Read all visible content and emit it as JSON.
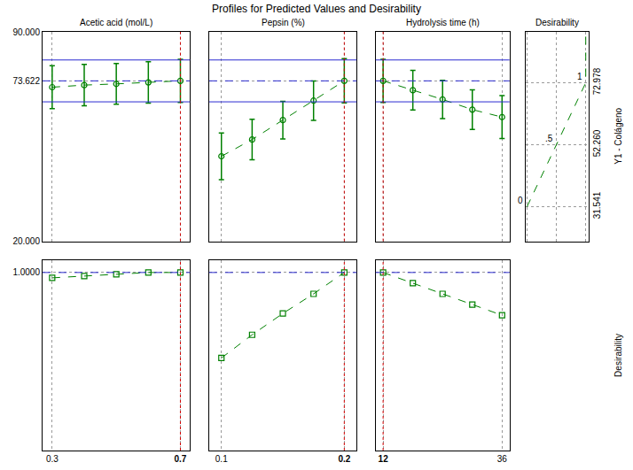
{
  "title": "Profiles for Predicted Values and Desirability",
  "chart_data": [
    {
      "type": "line",
      "title": "Acetic acid (mol/L)",
      "x": [
        0.3,
        0.4,
        0.5,
        0.6,
        0.7
      ],
      "values": [
        71.5,
        72.2,
        72.6,
        73.1,
        73.622
      ],
      "errors": [
        7.2,
        6.9,
        6.8,
        6.9,
        7.2
      ],
      "xlim": [
        0.27,
        0.73
      ],
      "xticks": [
        0.3,
        0.7
      ],
      "ylim": [
        20,
        90
      ],
      "yticks": [
        {
          "value": 20,
          "label": "20.000"
        },
        73.622,
        {
          "value": 90,
          "label": "90.000"
        }
      ],
      "reference_lines": [
        {
          "value": 73.622,
          "line_style": "dash",
          "color": "#2a2ad0"
        },
        {
          "value": 66.6,
          "line_style": "solid",
          "color": "#2a2ad0"
        },
        {
          "value": 80.6,
          "line_style": "solid",
          "color": "#2a2ad0"
        }
      ],
      "current_x": 0.7,
      "grid": true,
      "tick_labels": "y",
      "color": "#008000",
      "marker": "circle",
      "line_style": "dash"
    },
    {
      "type": "line",
      "title": "Pepsin (%)",
      "x": [
        0.1,
        0.125,
        0.15,
        0.175,
        0.2
      ],
      "values": [
        48.4,
        54.0,
        60.5,
        67.0,
        73.622
      ],
      "errors": [
        7.8,
        6.8,
        6.3,
        6.6,
        7.4
      ],
      "xlim": [
        0.09,
        0.21
      ],
      "xticks": [
        0.1,
        0.2
      ],
      "ylim": [
        20,
        90
      ],
      "yticks": [
        {
          "value": 20,
          "label": "20.000"
        },
        73.622,
        {
          "value": 90,
          "label": "90.000"
        }
      ],
      "reference_lines": [
        {
          "value": 73.622,
          "line_style": "dash",
          "color": "#2a2ad0"
        },
        {
          "value": 66.6,
          "line_style": "solid",
          "color": "#2a2ad0"
        },
        {
          "value": 80.6,
          "line_style": "solid",
          "color": "#2a2ad0"
        }
      ],
      "current_x": 0.2,
      "grid": true,
      "tick_labels": false,
      "color": "#008000",
      "marker": "circle",
      "line_style": "dash"
    },
    {
      "type": "line",
      "title": "Hydrolysis time (h)",
      "x": [
        12,
        18,
        24,
        30,
        36
      ],
      "values": [
        73.622,
        70.5,
        67.4,
        64.0,
        61.5
      ],
      "errors": [
        7.2,
        6.6,
        6.4,
        6.6,
        7.2
      ],
      "xlim": [
        10.5,
        37.5
      ],
      "xticks": [
        12,
        36
      ],
      "ylim": [
        20,
        90
      ],
      "yticks": [
        {
          "value": 20,
          "label": "20.000"
        },
        73.622,
        {
          "value": 90,
          "label": "90.000"
        }
      ],
      "reference_lines": [
        {
          "value": 73.622,
          "line_style": "dash",
          "color": "#2a2ad0"
        },
        {
          "value": 66.6,
          "line_style": "solid",
          "color": "#2a2ad0"
        },
        {
          "value": 80.6,
          "line_style": "solid",
          "color": "#2a2ad0"
        }
      ],
      "current_x": 12,
      "grid": true,
      "tick_labels": false,
      "color": "#008000",
      "marker": "circle",
      "line_style": "dash"
    },
    {
      "type": "line",
      "title": "Desirability",
      "ylabel": "Y1 - Colágeno",
      "x": [
        0,
        0.5,
        1,
        1
      ],
      "values": [
        31.541,
        52.26,
        72.978,
        90
      ],
      "xlim": [
        -0.02,
        1.05
      ],
      "xticks": [
        0,
        0.5,
        1
      ],
      "ylim": [
        20,
        90
      ],
      "yticks": [
        31.541,
        {
          "value": 52.26,
          "label": "52.260"
        },
        72.978
      ],
      "annotations": [
        {
          "x": 0,
          "y": 31.541,
          "text": "0"
        },
        {
          "x": 0.5,
          "y": 52.26,
          "text": ".5"
        },
        {
          "x": 1,
          "y": 72.978,
          "text": "1"
        }
      ],
      "grid": true,
      "tick_labels": "y",
      "color": "#008000",
      "marker": "none",
      "line_style": "dash"
    },
    {
      "type": "line",
      "ylabel": "Desirability",
      "x": [
        0.3,
        0.4,
        0.5,
        0.6,
        0.7
      ],
      "values": [
        0.97,
        0.98,
        0.99,
        1.0,
        1.0
      ],
      "xlim": [
        0.27,
        0.73
      ],
      "xticks": [
        0.3,
        0.7
      ],
      "ylim": [
        0,
        1.07
      ],
      "yticks": [
        {
          "value": 1,
          "label": "1.0000"
        }
      ],
      "reference_lines": [
        {
          "value": 1,
          "line_style": "dash",
          "color": "#2a2ad0"
        }
      ],
      "current_x": 0.7,
      "grid": true,
      "color": "#008000",
      "marker": "square",
      "line_style": "dash"
    },
    {
      "type": "line",
      "x": [
        0.1,
        0.125,
        0.15,
        0.175,
        0.2
      ],
      "values": [
        0.52,
        0.65,
        0.77,
        0.88,
        1.0
      ],
      "xlim": [
        0.09,
        0.21
      ],
      "xticks": [
        0.1,
        0.2
      ],
      "ylim": [
        0,
        1.07
      ],
      "yticks": [
        {
          "value": 1,
          "label": "1.0000"
        }
      ],
      "reference_lines": [
        {
          "value": 1,
          "line_style": "dash",
          "color": "#2a2ad0"
        }
      ],
      "current_x": 0.2,
      "grid": true,
      "tick_labels": "x",
      "color": "#008000",
      "marker": "square",
      "line_style": "dash"
    },
    {
      "type": "line",
      "x": [
        12,
        18,
        24,
        30,
        36
      ],
      "values": [
        1.0,
        0.94,
        0.88,
        0.82,
        0.76
      ],
      "xlim": [
        10.5,
        37.5
      ],
      "xticks": [
        12,
        36
      ],
      "ylim": [
        0,
        1.07
      ],
      "yticks": [
        {
          "value": 1,
          "label": "1.0000"
        }
      ],
      "reference_lines": [
        {
          "value": 1,
          "line_style": "dash",
          "color": "#2a2ad0"
        }
      ],
      "current_x": 12,
      "grid": true,
      "tick_labels": "x",
      "color": "#008000",
      "marker": "square",
      "line_style": "dash"
    }
  ]
}
